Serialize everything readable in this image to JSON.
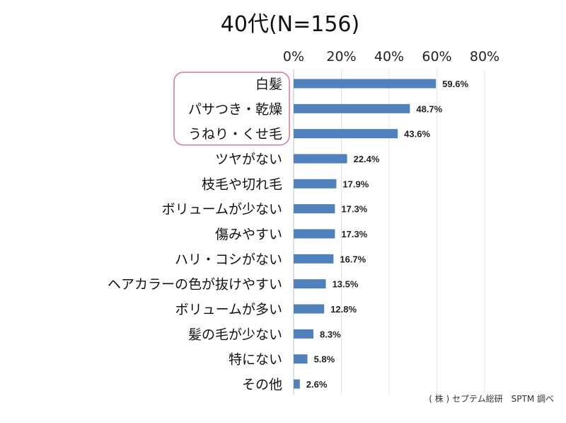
{
  "chart_data": {
    "type": "bar",
    "orientation": "horizontal",
    "title": "40代(N=156)",
    "xlim": [
      0,
      80
    ],
    "xticks": [
      "0%",
      "20%",
      "40%",
      "60%",
      "80%"
    ],
    "grid": true,
    "bar_color": "#4f81bd",
    "highlight_color": "#d9788c",
    "highlighted_categories": [
      "白髪",
      "パサつき・乾燥",
      "うねり・くせ毛"
    ],
    "categories": [
      "白髪",
      "パサつき・乾燥",
      "うねり・くせ毛",
      "ツヤがない",
      "枝毛や切れ毛",
      "ボリュームが少ない",
      "傷みやすい",
      "ハリ・コシがない",
      "ヘアカラーの色が抜けやすい",
      "ボリュームが多い",
      "髪の毛が少ない",
      "特にない",
      "その他"
    ],
    "values": [
      59.6,
      48.7,
      43.6,
      22.4,
      17.9,
      17.3,
      17.3,
      16.7,
      13.5,
      12.8,
      8.3,
      5.8,
      2.6
    ],
    "value_labels": [
      "59.6%",
      "48.7%",
      "43.6%",
      "22.4%",
      "17.9%",
      "17.3%",
      "17.3%",
      "16.7%",
      "13.5%",
      "12.8%",
      "8.3%",
      "5.8%",
      "2.6%"
    ]
  },
  "source": "( 株 ) セプテム総研　SPTM 調べ"
}
